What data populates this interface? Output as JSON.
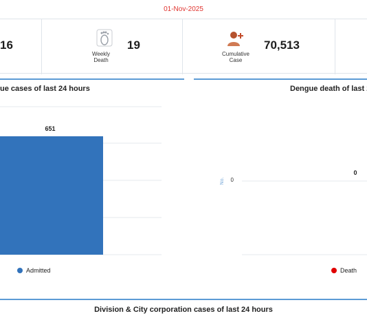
{
  "date": "01-Nov-2025",
  "stats": [
    {
      "label": "",
      "value": "16",
      "icon": "partial-stat"
    },
    {
      "label_line1": "Weekly",
      "label_line2": "Death",
      "value": "19",
      "icon": "footprint-icon"
    },
    {
      "label_line1": "Cumulative",
      "label_line2": "Case",
      "value": "70,513",
      "icon": "person-plus-icon"
    }
  ],
  "left_panel": {
    "title": "ue cases of last 24 hours",
    "legend": "Admitted",
    "color": "#3273bb"
  },
  "right_panel": {
    "title": "Dengue death of last 2",
    "legend": "Death",
    "color": "#e00000",
    "y_label": "No."
  },
  "bottom_title": "Division & City corporation cases of last 24 hours",
  "chart_data": [
    {
      "type": "bar",
      "title": "ue cases of last 24 hours",
      "series": [
        {
          "name": "Admitted",
          "values": [
            651
          ]
        }
      ],
      "data_labels": [
        "651"
      ]
    },
    {
      "type": "bar",
      "title": "Dengue death of last 2",
      "ylabel": "No.",
      "y_ticks": [
        "0"
      ],
      "series": [
        {
          "name": "Death",
          "values": [
            0
          ]
        }
      ],
      "data_labels": [
        "0"
      ]
    }
  ]
}
